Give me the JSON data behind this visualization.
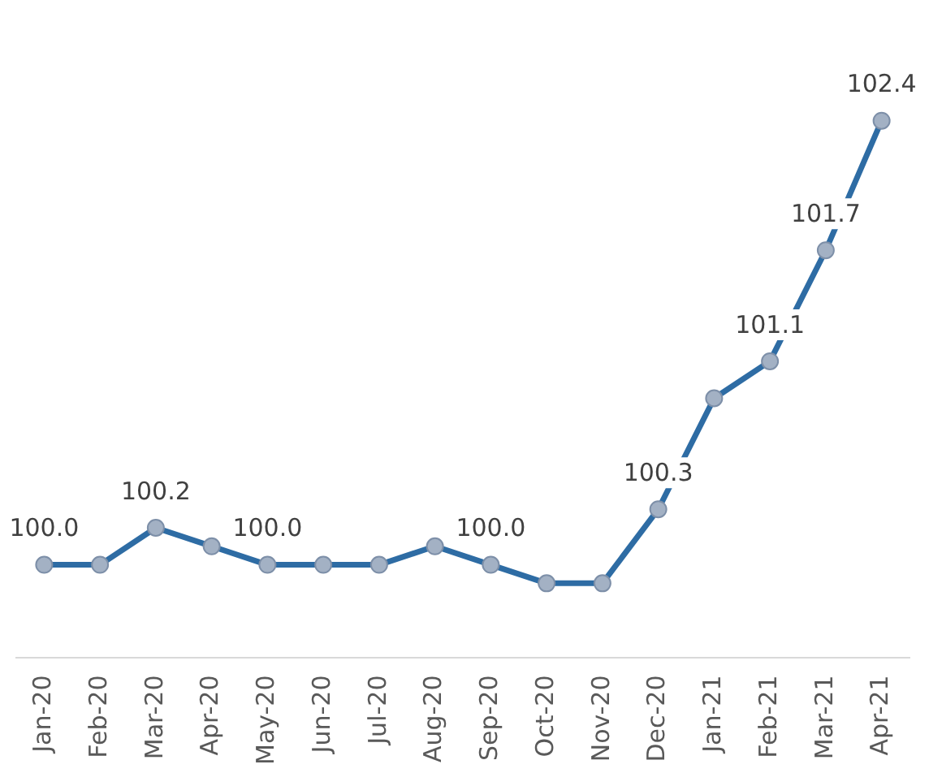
{
  "chart_data": {
    "type": "line",
    "categories": [
      "Jan-20",
      "Feb-20",
      "Mar-20",
      "Apr-20",
      "May-20",
      "Jun-20",
      "Jul-20",
      "Aug-20",
      "Sep-20",
      "Oct-20",
      "Nov-20",
      "Dec-20",
      "Jan-21",
      "Feb-21",
      "Mar-21",
      "Apr-21"
    ],
    "series": [
      {
        "color": "#2e6ca4",
        "values": [
          100.0,
          100.0,
          100.2,
          100.1,
          100.0,
          100.0,
          100.0,
          100.1,
          100.0,
          99.9,
          99.9,
          100.3,
          100.9,
          101.1,
          101.7,
          102.4
        ],
        "value_labels": [
          "100.0",
          null,
          "100.2",
          null,
          "100.0",
          null,
          null,
          null,
          "100.0",
          null,
          null,
          "100.3",
          null,
          "101.1",
          "101.7",
          "102.4"
        ]
      }
    ],
    "marker": "circle",
    "line_style": "solid",
    "grid": false,
    "legend": false,
    "tick_labels": "x"
  }
}
